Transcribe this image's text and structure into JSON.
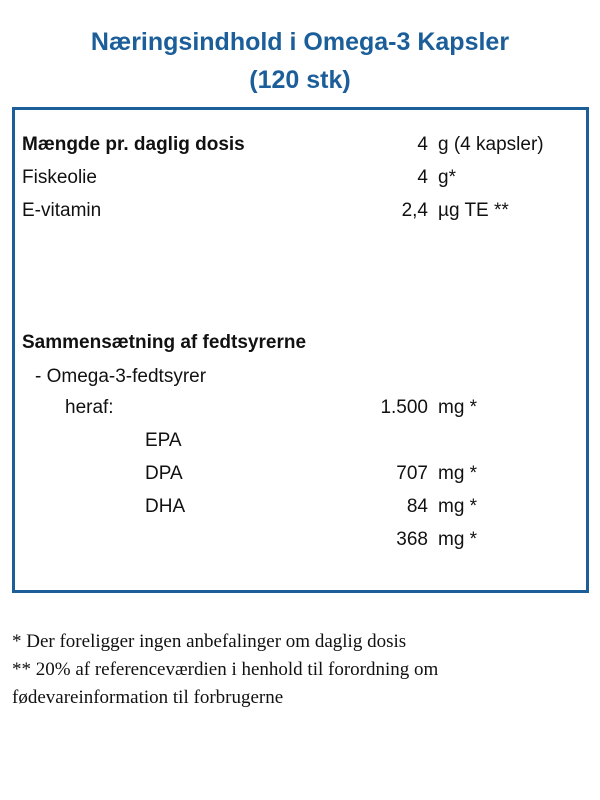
{
  "title": {
    "line1": "Næringsindhold i Omega-3 Kapsler",
    "line2": "(120 stk)"
  },
  "sections": [
    {
      "heading": {
        "label": "Mængde pr. daglig dosis",
        "value": "4",
        "unit": "g (4 kapsler)"
      },
      "rows": [
        {
          "label": "Fiskeolie",
          "value": "4",
          "unit": "g*"
        },
        {
          "label": "E-vitamin",
          "value": "2,4",
          "unit": "µg TE **"
        }
      ]
    },
    {
      "heading": {
        "label": "Sammensætning af fedtsyrerne"
      },
      "rows": [
        {
          "label": "- Omega-3-fedtsyrer"
        },
        {
          "label": "heraf:",
          "value": "1.500",
          "unit": "mg *"
        },
        {
          "label": "EPA"
        },
        {
          "label": "DPA",
          "value": "707",
          "unit": "mg *"
        },
        {
          "label": "DHA",
          "value": "84",
          "unit": "mg *"
        },
        {
          "value": "368",
          "unit": "mg *"
        }
      ]
    }
  ],
  "notes": [
    "* Der foreligger ingen anbefalinger om daglig dosis",
    "** 20% af referenceværdien i henhold til forordning om fødevareinformation til forbrugerne"
  ]
}
